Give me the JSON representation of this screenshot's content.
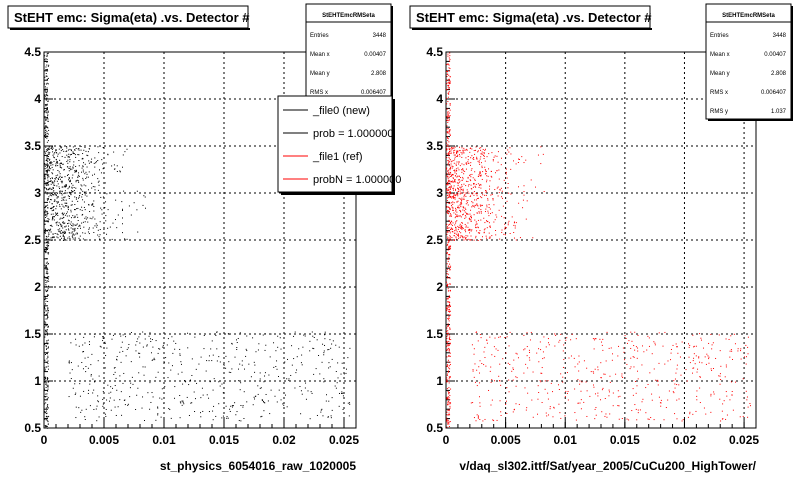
{
  "chart_data": [
    {
      "type": "scatter",
      "title": "StEHT emc: Sigma(eta) .vs. Detector #",
      "xlabel": "st_physics_6054016_raw_1020005",
      "ylabel": "",
      "xlim": [
        0,
        0.026
      ],
      "ylim": [
        0.5,
        4.5
      ],
      "x_ticks": [
        "0",
        "0.005",
        "0.01",
        "0.015",
        "0.02",
        "0.025"
      ],
      "y_ticks": [
        "0.5",
        "1",
        "1.5",
        "2",
        "2.5",
        "3",
        "3.5",
        "4",
        "4.5"
      ],
      "grid": true,
      "marker_color": "#000000",
      "stats": {
        "name": "StEHTEmcRMSeta",
        "rows": [
          {
            "label": "Entries",
            "value": "3448"
          },
          {
            "label": "Mean x",
            "value": "0.00407"
          },
          {
            "label": "Mean y",
            "value": "2.808"
          },
          {
            "label": "RMS x",
            "value": "0.006407"
          }
        ]
      },
      "legend": {
        "placement": "top-right",
        "entries": [
          {
            "label": "_file0 (new)",
            "color": "#000000"
          },
          {
            "label": "prob = 1.000000",
            "color": "#000000"
          },
          {
            "label": "_file1 (ref)",
            "color": "#ff0000"
          },
          {
            "label": "probN = 1.000000",
            "color": "#ff0000"
          }
        ]
      }
    },
    {
      "type": "scatter",
      "title": "StEHT emc: Sigma(eta) .vs. Detector #",
      "xlabel": "v/daq_sl302.ittf/Sat/year_2005/CuCu200_HighTower/",
      "ylabel": "",
      "xlim": [
        0,
        0.026
      ],
      "ylim": [
        0.5,
        4.5
      ],
      "x_ticks": [
        "0",
        "0.005",
        "0.01",
        "0.015",
        "0.02",
        "0.025"
      ],
      "y_ticks": [
        "0.5",
        "1",
        "1.5",
        "2",
        "2.5",
        "3",
        "3.5",
        "4",
        "4.5"
      ],
      "grid": true,
      "marker_color": "#ff0000",
      "stats": {
        "name": "StEHTEmcRMSeta",
        "rows": [
          {
            "label": "Entries",
            "value": "3448"
          },
          {
            "label": "Mean x",
            "value": "0.00407"
          },
          {
            "label": "Mean y",
            "value": "2.808"
          },
          {
            "label": "RMS x",
            "value": "0.006407"
          },
          {
            "label": "RMS y",
            "value": "1.037"
          }
        ]
      }
    }
  ]
}
